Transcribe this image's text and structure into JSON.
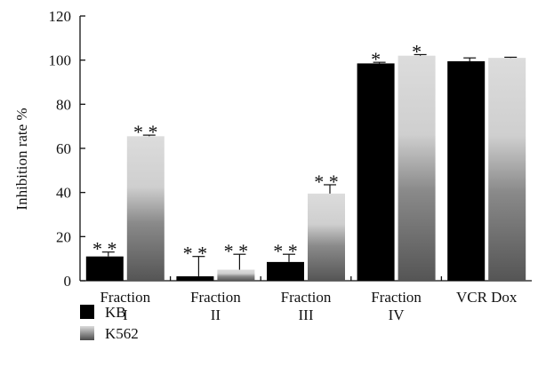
{
  "chart_data": {
    "type": "bar",
    "ylabel": "Inhibition rate %",
    "xlabel": "",
    "ylim": [
      0,
      120
    ],
    "yticks": [
      0,
      20,
      40,
      60,
      80,
      100,
      120
    ],
    "groups": [
      {
        "label_lines": [
          "Fraction",
          "I"
        ]
      },
      {
        "label_lines": [
          "Fraction",
          "II"
        ]
      },
      {
        "label_lines": [
          "Fraction",
          "III"
        ]
      },
      {
        "label_lines": [
          "Fraction",
          "IV"
        ]
      },
      {
        "label_lines": [
          "VCR Dox"
        ]
      }
    ],
    "series": [
      {
        "name": "KB",
        "color": "#000000",
        "values": [
          11,
          2,
          8.5,
          98.5,
          99.5
        ],
        "errors": [
          2,
          9,
          3.5,
          0.5,
          1.5
        ],
        "significance": [
          "**",
          "**",
          "**",
          "*",
          ""
        ]
      },
      {
        "name": "K562",
        "color_top": "#d9d9d9",
        "color_bottom": "#555555",
        "values": [
          65.5,
          5,
          39.5,
          102,
          101
        ],
        "errors": [
          0.5,
          7,
          4,
          0.5,
          0.3
        ],
        "significance": [
          "**",
          "**",
          "**",
          "*",
          ""
        ]
      }
    ],
    "legend_position": "bottom-left",
    "grid": false
  }
}
